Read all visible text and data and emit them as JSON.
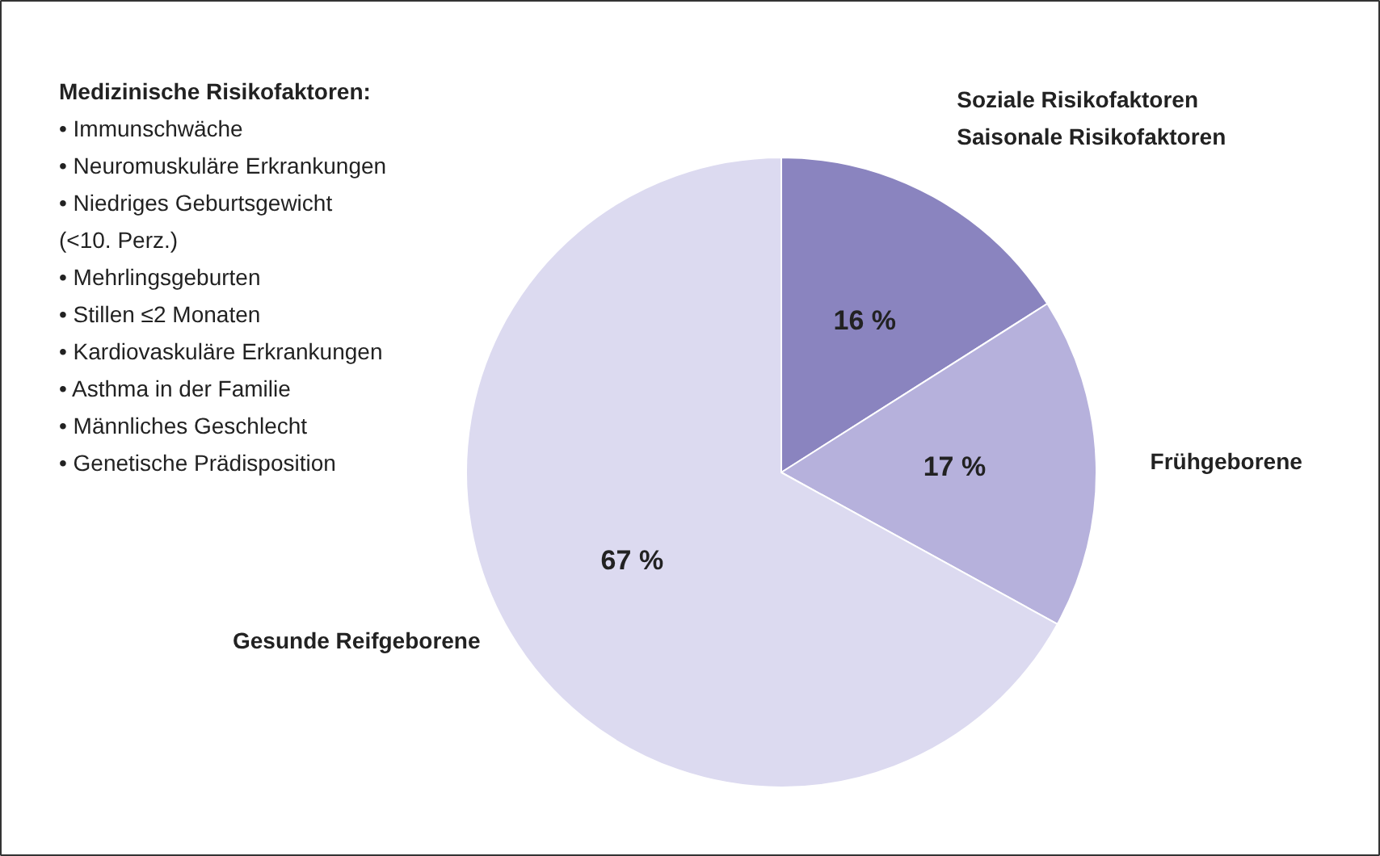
{
  "chart_data": {
    "type": "pie",
    "categories": [
      "Soziale Risikofaktoren\nSaisonale Risikofaktoren",
      "Frühgeborene",
      "Gesunde Reifgeborene"
    ],
    "values": [
      16,
      17,
      67
    ],
    "colors": [
      "#8a84bf",
      "#b6b1dc",
      "#dcdaf0"
    ],
    "value_labels": [
      "16 %",
      "17 %",
      "67 %"
    ],
    "annotations": [
      "Medizinische Risikofaktoren:",
      "• Immunschwäche",
      "• Neuromuskuläre Erkrankungen",
      "• Niedriges Geburtsgewicht\n   (<10. Perz.)",
      "• Mehrlingsgeburten",
      "• Stillen ≤2 Monaten",
      "• Kardiovaskuläre Erkrankungen",
      "• Asthma in der Familie",
      "• Männliches Geschlecht",
      "• Genetische Prädisposition"
    ],
    "legend": false
  }
}
